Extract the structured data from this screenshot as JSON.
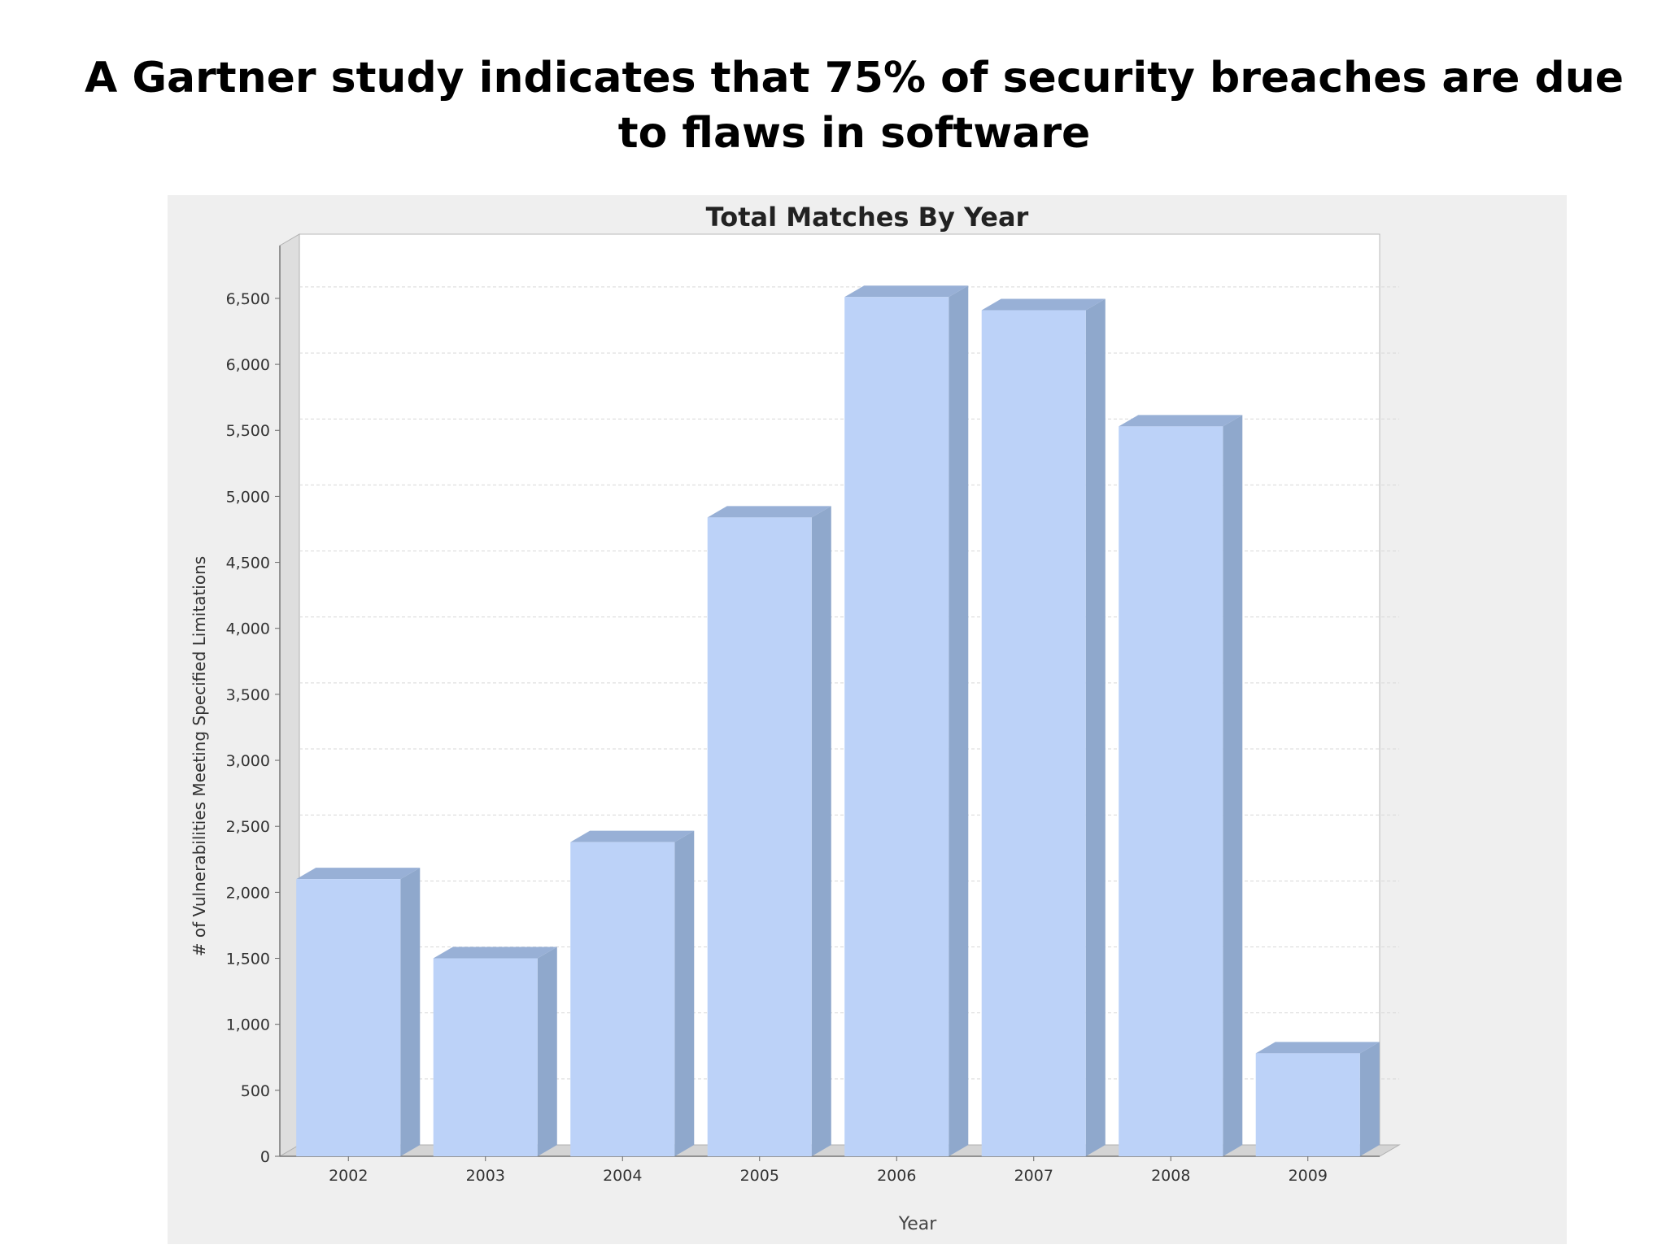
{
  "slide": {
    "title": "A Gartner study indicates that 75% of security breaches are due to flaws in software"
  },
  "colors": {
    "bar_front": "#bcd2f8",
    "bar_side": "#8fa8cc",
    "bar_top": "#98b0d6",
    "panel_bg": "#efefef",
    "plot_bg": "#ffffff",
    "gridline": "#d8d8d8"
  },
  "chart_data": {
    "type": "bar",
    "title": "Total Matches By Year",
    "xlabel": "Year",
    "ylabel": "# of Vulnerabilities Meeting Specified Limitations",
    "categories": [
      "2002",
      "2003",
      "2004",
      "2005",
      "2006",
      "2007",
      "2008",
      "2009"
    ],
    "values": [
      2100,
      1500,
      2380,
      4840,
      6510,
      6410,
      5530,
      780
    ],
    "ylim": [
      0,
      6900
    ],
    "yticks": [
      0,
      500,
      1000,
      1500,
      2000,
      2500,
      3000,
      3500,
      4000,
      4500,
      5000,
      5500,
      6000,
      6500
    ],
    "ytick_labels": [
      "0",
      "500",
      "1,000",
      "1,500",
      "2,000",
      "2,500",
      "3,000",
      "3,500",
      "4,000",
      "4,500",
      "5,000",
      "5,500",
      "6,000",
      "6,500"
    ],
    "grid": true,
    "style": "3d"
  }
}
